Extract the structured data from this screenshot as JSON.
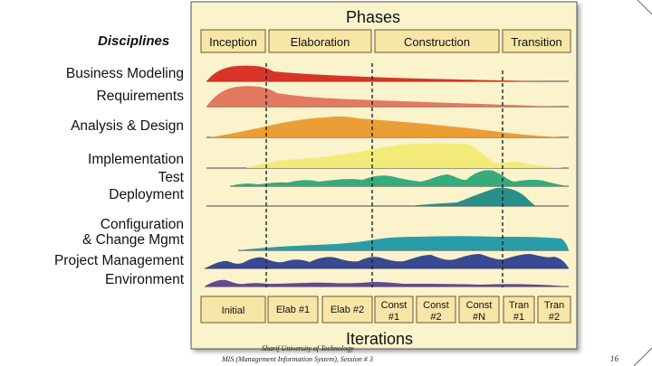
{
  "diagram": {
    "phases_title": "Phases",
    "disciplines_title": "Disciplines",
    "iterations_title": "Iterations",
    "phases": [
      "Inception",
      "Elaboration",
      "Construction",
      "Transition"
    ],
    "disciplines": [
      "Business Modeling",
      "Requirements",
      "Analysis & Design",
      "Implementation",
      "Test",
      "Deployment",
      "Configuration",
      "& Change Mgmt",
      "Project Management",
      "Environment"
    ],
    "iterations": [
      {
        "line1": "Initial",
        "line2": ""
      },
      {
        "line1": "Elab #1",
        "line2": ""
      },
      {
        "line1": "Elab #2",
        "line2": ""
      },
      {
        "line1": "Const",
        "line2": "#1"
      },
      {
        "line1": "Const",
        "line2": "#2"
      },
      {
        "line1": "Const",
        "line2": "#N"
      },
      {
        "line1": "Tran",
        "line2": "#1"
      },
      {
        "line1": "Tran",
        "line2": "#2"
      }
    ],
    "colors": {
      "panel": "#faf3cc",
      "panel_border": "#555555",
      "box": "#f6e6a8",
      "business_modeling": "#d62a1f",
      "requirements": "#e0735a",
      "analysis_design": "#e99a2c",
      "implementation": "#f2ea72",
      "test": "#2aa876",
      "deployment": "#1c8a86",
      "config_change": "#1e97a6",
      "project_management": "#2e3f8f",
      "environment": "#5a3f96"
    }
  },
  "footer": {
    "line1": "Sharif University of Technology",
    "line2": "MIS (Management Information System), Session # 3",
    "page": "16"
  }
}
